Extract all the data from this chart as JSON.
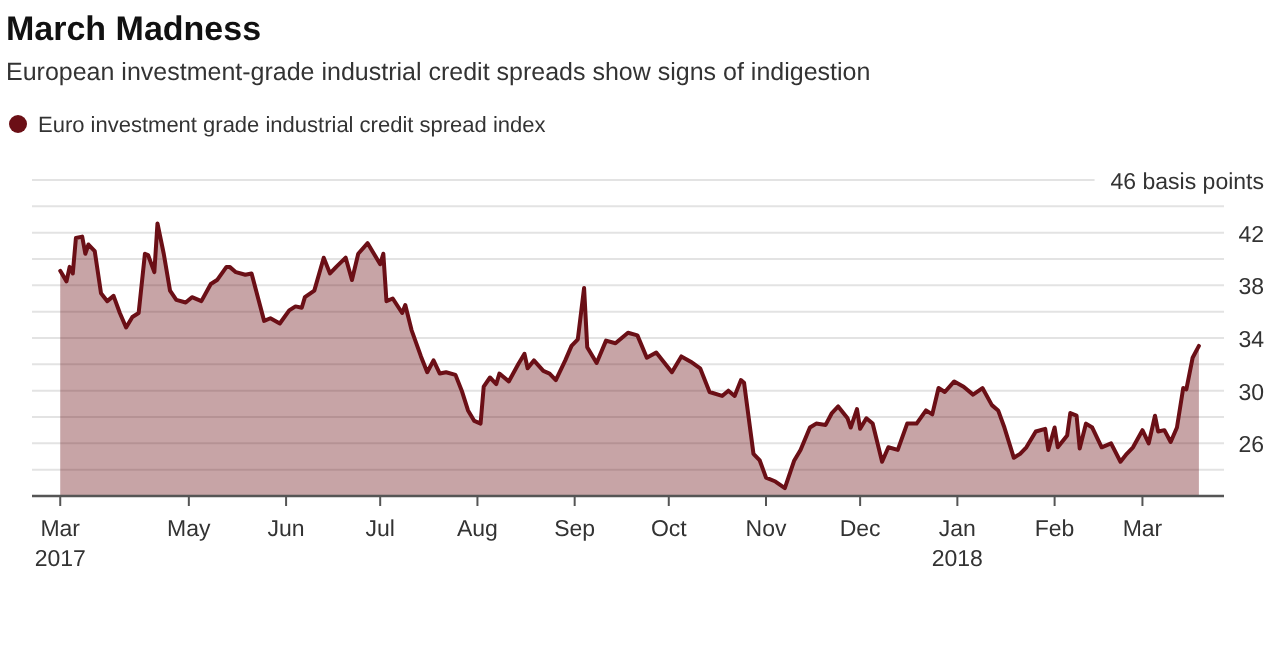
{
  "chart_data": {
    "type": "area",
    "title": "March Madness",
    "subtitle": "European investment-grade industrial credit spreads show signs of indigestion",
    "x": [
      "2017-03-21",
      "2017-03-23",
      "2017-03-24",
      "2017-03-25",
      "2017-03-26",
      "2017-03-28",
      "2017-03-29",
      "2017-03-30",
      "2017-04-01",
      "2017-04-03",
      "2017-04-05",
      "2017-04-07",
      "2017-04-09",
      "2017-04-11",
      "2017-04-13",
      "2017-04-15",
      "2017-04-17",
      "2017-04-18",
      "2017-04-20",
      "2017-04-21",
      "2017-04-23",
      "2017-04-25",
      "2017-04-27",
      "2017-04-30",
      "2017-05-02",
      "2017-05-05",
      "2017-05-08",
      "2017-05-10",
      "2017-05-13",
      "2017-05-14",
      "2017-05-16",
      "2017-05-19",
      "2017-05-21",
      "2017-05-23",
      "2017-05-25",
      "2017-05-27",
      "2017-05-30",
      "2017-06-02",
      "2017-06-04",
      "2017-06-06",
      "2017-06-07",
      "2017-06-10",
      "2017-06-13",
      "2017-06-15",
      "2017-06-17",
      "2017-06-20",
      "2017-06-22",
      "2017-06-24",
      "2017-06-27",
      "2017-06-29",
      "2017-07-01",
      "2017-07-02",
      "2017-07-03",
      "2017-07-05",
      "2017-07-08",
      "2017-07-09",
      "2017-07-11",
      "2017-07-14",
      "2017-07-16",
      "2017-07-18",
      "2017-07-20",
      "2017-07-22",
      "2017-07-25",
      "2017-07-27",
      "2017-07-29",
      "2017-07-31",
      "2017-08-02",
      "2017-08-03",
      "2017-08-05",
      "2017-08-07",
      "2017-08-08",
      "2017-08-11",
      "2017-08-14",
      "2017-08-16",
      "2017-08-17",
      "2017-08-19",
      "2017-08-22",
      "2017-08-24",
      "2017-08-26",
      "2017-08-29",
      "2017-08-31",
      "2017-09-02",
      "2017-09-04",
      "2017-09-05",
      "2017-09-08",
      "2017-09-11",
      "2017-09-14",
      "2017-09-18",
      "2017-09-21",
      "2017-09-24",
      "2017-09-27",
      "2017-10-02",
      "2017-10-05",
      "2017-10-08",
      "2017-10-11",
      "2017-10-14",
      "2017-10-18",
      "2017-10-20",
      "2017-10-22",
      "2017-10-24",
      "2017-10-25",
      "2017-10-28",
      "2017-10-30",
      "2017-11-01",
      "2017-11-04",
      "2017-11-07",
      "2017-11-10",
      "2017-11-12",
      "2017-11-15",
      "2017-11-17",
      "2017-11-20",
      "2017-11-22",
      "2017-11-24",
      "2017-11-27",
      "2017-11-28",
      "2017-11-30",
      "2017-12-01",
      "2017-12-03",
      "2017-12-05",
      "2017-12-08",
      "2017-12-10",
      "2017-12-13",
      "2017-12-16",
      "2017-12-19",
      "2017-12-22",
      "2017-12-24",
      "2017-12-26",
      "2017-12-28",
      "2017-12-31",
      "2018-01-03",
      "2018-01-06",
      "2018-01-09",
      "2018-01-12",
      "2018-01-14",
      "2018-01-16",
      "2018-01-19",
      "2018-01-21",
      "2018-01-23",
      "2018-01-26",
      "2018-01-29",
      "2018-01-30",
      "2018-02-01",
      "2018-02-02",
      "2018-02-05",
      "2018-02-06",
      "2018-02-08",
      "2018-02-09",
      "2018-02-11",
      "2018-02-13",
      "2018-02-16",
      "2018-02-19",
      "2018-02-22",
      "2018-02-24",
      "2018-02-26",
      "2018-03-01",
      "2018-03-03",
      "2018-03-05",
      "2018-03-06",
      "2018-03-08",
      "2018-03-10",
      "2018-03-12",
      "2018-03-14",
      "2018-03-15",
      "2018-03-17",
      "2018-03-19"
    ],
    "series": [
      {
        "name": "Euro investment grade industrial credit spread index",
        "color": "#6b0f16",
        "values": [
          39.1,
          38.3,
          39.4,
          38.9,
          41.6,
          41.7,
          40.4,
          41.1,
          40.6,
          37.4,
          36.8,
          37.2,
          35.9,
          34.8,
          35.6,
          35.9,
          40.4,
          40.3,
          39.0,
          42.7,
          40.4,
          37.6,
          36.9,
          36.7,
          37.1,
          36.8,
          38.1,
          38.4,
          39.4,
          39.4,
          39.0,
          38.8,
          38.9,
          37.1,
          35.3,
          35.5,
          35.1,
          36.1,
          36.4,
          36.3,
          37.1,
          37.6,
          40.1,
          38.9,
          39.4,
          40.1,
          38.4,
          40.4,
          41.2,
          40.4,
          39.6,
          40.4,
          36.8,
          37.0,
          35.9,
          36.5,
          34.6,
          32.6,
          31.4,
          32.3,
          31.3,
          31.4,
          31.2,
          30.0,
          28.5,
          27.7,
          27.5,
          30.3,
          31.0,
          30.5,
          31.3,
          30.7,
          32.0,
          32.8,
          31.7,
          32.3,
          31.5,
          31.3,
          30.8,
          32.3,
          33.4,
          33.9,
          37.8,
          33.3,
          32.1,
          33.8,
          33.6,
          34.4,
          34.2,
          32.5,
          32.9,
          31.4,
          32.6,
          32.2,
          31.7,
          29.9,
          29.6,
          30.0,
          29.6,
          30.8,
          30.6,
          25.2,
          24.7,
          23.4,
          23.1,
          22.6,
          24.7,
          25.5,
          27.2,
          27.5,
          27.4,
          28.3,
          28.8,
          27.9,
          27.2,
          28.6,
          27.1,
          27.9,
          27.5,
          24.6,
          25.7,
          25.5,
          27.5,
          27.5,
          28.5,
          28.2,
          30.2,
          29.9,
          30.7,
          30.3,
          29.7,
          30.2,
          28.9,
          28.5,
          27.2,
          24.9,
          25.2,
          25.7,
          26.9,
          27.1,
          25.5,
          27.2,
          25.7,
          26.6,
          28.3,
          28.1,
          25.6,
          27.5,
          27.2,
          25.7,
          26.0,
          24.6,
          25.2,
          25.7,
          27.0,
          26.0,
          28.1,
          26.9,
          27.0,
          26.1,
          27.2,
          30.2,
          30.1,
          32.5,
          33.4
        ]
      }
    ],
    "xlim": [
      "2017-03-12",
      "2018-03-27"
    ],
    "xticks": [
      {
        "value": "2017-03-21",
        "label": "Mar\n2017"
      },
      {
        "value": "2017-05-01",
        "label": "May"
      },
      {
        "value": "2017-06-01",
        "label": "Jun"
      },
      {
        "value": "2017-07-01",
        "label": "Jul"
      },
      {
        "value": "2017-08-01",
        "label": "Aug"
      },
      {
        "value": "2017-09-01",
        "label": "Sep"
      },
      {
        "value": "2017-10-01",
        "label": "Oct"
      },
      {
        "value": "2017-11-01",
        "label": "Nov"
      },
      {
        "value": "2017-12-01",
        "label": "Dec"
      },
      {
        "value": "2018-01-01",
        "label": "Jan\n2018"
      },
      {
        "value": "2018-02-01",
        "label": "Feb"
      },
      {
        "value": "2018-03-01",
        "label": "Mar"
      }
    ],
    "ylim": [
      22,
      46
    ],
    "yticks": [
      {
        "value": 24,
        "label": null
      },
      26,
      {
        "value": 28,
        "label": null
      },
      30,
      {
        "value": 32,
        "label": null
      },
      34,
      {
        "value": 36,
        "label": null
      },
      38,
      {
        "value": 40,
        "label": null
      },
      42,
      {
        "value": 44,
        "label": null
      },
      {
        "value": 46,
        "label": "46 basis points"
      }
    ],
    "grid": "y",
    "legend": "top left",
    "marker": "none",
    "line_style": "solid"
  }
}
